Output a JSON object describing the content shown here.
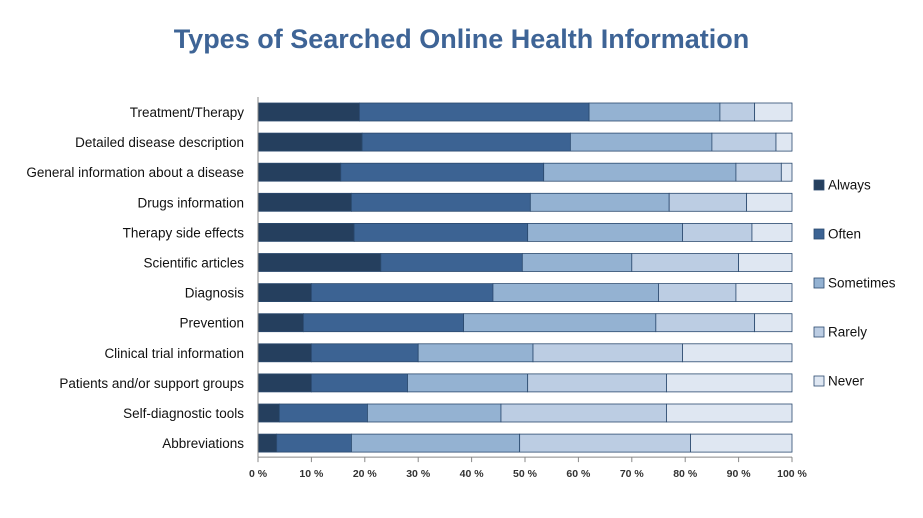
{
  "chart_data": {
    "type": "bar",
    "orientation": "horizontal",
    "stacked": true,
    "title": "Types of Searched Online Health Information",
    "categories": [
      "Treatment/Therapy",
      "Detailed disease description",
      "General information about a disease",
      "Drugs information",
      "Therapy side effects",
      "Scientific articles",
      "Diagnosis",
      "Prevention",
      "Clinical trial information",
      "Patients and/or support groups",
      "Self-diagnostic tools",
      "Abbreviations"
    ],
    "series": [
      {
        "name": "Always",
        "color": "#253f5e",
        "values": [
          19,
          19.5,
          15.5,
          17.5,
          18,
          23,
          10,
          8.5,
          10,
          10,
          4,
          3.5
        ]
      },
      {
        "name": "Often",
        "color": "#3c6393",
        "values": [
          43,
          39,
          38,
          33.5,
          32.5,
          26.5,
          34,
          30,
          20,
          18,
          16.5,
          14
        ]
      },
      {
        "name": "Sometimes",
        "color": "#94b2d2",
        "values": [
          24.5,
          26.5,
          36,
          26,
          29,
          20.5,
          31,
          36,
          21.5,
          22.5,
          25,
          31.5
        ]
      },
      {
        "name": "Rarely",
        "color": "#bccde3",
        "values": [
          6.5,
          12,
          8.5,
          14.5,
          13,
          20,
          14.5,
          18.5,
          28,
          26,
          31,
          32
        ]
      },
      {
        "name": "Never",
        "color": "#dfe7f2",
        "values": [
          7,
          3,
          2,
          8.5,
          7.5,
          10,
          10.5,
          7,
          20.5,
          23.5,
          23.5,
          19
        ]
      }
    ],
    "xlim": [
      0,
      100
    ],
    "xticks": [
      "0 %",
      "10 %",
      "20 %",
      "30 %",
      "40 %",
      "50 %",
      "60 %",
      "70 %",
      "80 %",
      "90 %",
      "100 %"
    ],
    "legend_position": "right",
    "grid": false
  }
}
